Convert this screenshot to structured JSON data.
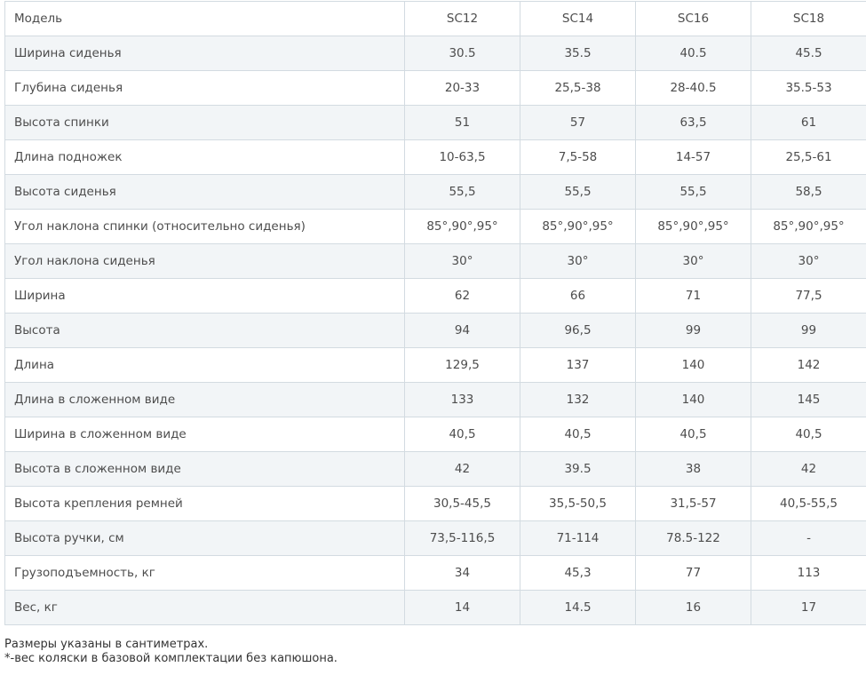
{
  "table": {
    "header": [
      "Модель",
      "SC12",
      "SC14",
      "SC16",
      "SC18"
    ],
    "rows": [
      [
        "Ширина сиденья",
        "30.5",
        "35.5",
        "40.5",
        "45.5"
      ],
      [
        "Глубина сиденья",
        "20-33",
        "25,5-38",
        "28-40.5",
        "35.5-53"
      ],
      [
        "Высота спинки",
        "51",
        "57",
        "63,5",
        "61"
      ],
      [
        "Длина подножек",
        "10-63,5",
        "7,5-58",
        "14-57",
        "25,5-61"
      ],
      [
        "Высота сиденья",
        "55,5",
        "55,5",
        "55,5",
        "58,5"
      ],
      [
        "Угол наклона спинки (относительно сиденья)",
        "85°,90°,95°",
        "85°,90°,95°",
        "85°,90°,95°",
        "85°,90°,95°"
      ],
      [
        "Угол наклона сиденья",
        "30°",
        "30°",
        "30°",
        "30°"
      ],
      [
        "Ширина",
        "62",
        "66",
        "71",
        "77,5"
      ],
      [
        "Высота",
        "94",
        "96,5",
        "99",
        "99"
      ],
      [
        "Длина",
        "129,5",
        "137",
        "140",
        "142"
      ],
      [
        "Длина в сложенном виде",
        "133",
        "132",
        "140",
        "145"
      ],
      [
        "Ширина в сложенном виде",
        "40,5",
        "40,5",
        "40,5",
        "40,5"
      ],
      [
        "Высота в сложенном виде",
        "42",
        "39.5",
        "38",
        "42"
      ],
      [
        "Высота крепления ремней",
        "30,5-45,5",
        "35,5-50,5",
        "31,5-57",
        "40,5-55,5"
      ],
      [
        "Высота ручки, см",
        "73,5-116,5",
        "71-114",
        "78.5-122",
        "-"
      ],
      [
        "Грузоподъемность, кг",
        "34",
        "45,3",
        "77",
        "113"
      ],
      [
        "Вес, кг",
        "14",
        "14.5",
        "16",
        "17"
      ]
    ]
  },
  "notes": [
    "Размеры указаны в сантиметрах.",
    "*-вес коляски в базовой комплектации без капюшона."
  ],
  "colors": {
    "stripe": "#f2f5f7",
    "border": "#d3dbe1",
    "text": "#4d4d4d"
  }
}
